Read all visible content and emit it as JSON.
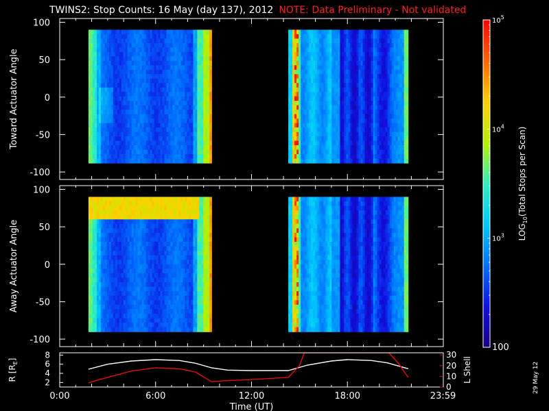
{
  "title": "TWINS2: Stop Counts: 16 May (day 137), 2012",
  "note": "NOTE: Data Preliminary - Not validated",
  "datestamp": "29 May 12",
  "colorbar": {
    "label": "LOG10(Total Stops per Scan)",
    "label_main": "LOG",
    "label_sub": "10",
    "label_rest": "(Total Stops per Scan)",
    "ticks": [
      {
        "base": "10",
        "exp": "5",
        "value": 100000
      },
      {
        "base": "10",
        "exp": "4",
        "value": 10000
      },
      {
        "base": "10",
        "exp": "3",
        "value": 1000
      },
      {
        "base": "100",
        "exp": "",
        "value": 100
      }
    ],
    "colors": [
      "#ff0000",
      "#ff6600",
      "#ffd000",
      "#b8f000",
      "#30f0c0",
      "#00c8ff",
      "#0070ff",
      "#1010e0",
      "#1a0080"
    ]
  },
  "chart_data": [
    {
      "type": "heatmap",
      "ylabel": "Toward Actuator Angle",
      "ylim": [
        -110,
        105
      ],
      "yticks": [
        "100",
        "50",
        "0",
        "-50",
        "-100"
      ],
      "ytick_values": [
        100,
        50,
        0,
        -50,
        -100
      ],
      "data_y_range": [
        -88,
        90
      ],
      "segments": [
        {
          "t_start": 1.8,
          "t_end": 9.5
        },
        {
          "t_start": 14.3,
          "t_end": 21.8
        }
      ],
      "grid": false
    },
    {
      "type": "heatmap",
      "ylabel": "Away Actuator Angle",
      "ylim": [
        -110,
        105
      ],
      "yticks": [
        "100",
        "50",
        "0",
        "-50",
        "-100"
      ],
      "ytick_values": [
        100,
        50,
        0,
        -50,
        -100
      ],
      "data_y_range": [
        -90,
        90
      ],
      "segments": [
        {
          "t_start": 1.8,
          "t_end": 9.5
        },
        {
          "t_start": 14.3,
          "t_end": 21.8
        }
      ],
      "grid": false
    },
    {
      "type": "line",
      "xlabel": "Time (UT)",
      "ylabel_left": "R [RE]",
      "ylabel_left_main": "R [R",
      "ylabel_left_sub": "E",
      "ylabel_left_end": "]",
      "ylabel_right": "L Shell",
      "ylim_left": [
        1,
        8.5
      ],
      "yticks_left": [
        "8",
        "6",
        "4",
        "2"
      ],
      "ytick_values_left": [
        8,
        6,
        4,
        2
      ],
      "ylim_right": [
        0,
        32
      ],
      "yticks_right": [
        "30",
        "20",
        "10",
        "0"
      ],
      "ytick_values_right": [
        30,
        20,
        10,
        0
      ],
      "xticks": [
        "0:00",
        "6:00",
        "12:00",
        "18:00",
        "23:59"
      ],
      "xtick_values": [
        0,
        6,
        12,
        18,
        23.98
      ],
      "series": [
        {
          "color": "#ffffff",
          "axis": "left",
          "x": [
            1.8,
            3,
            4.5,
            6,
            7.5,
            8.5,
            9.5,
            10.5,
            12,
            14.3,
            15.5,
            17,
            18,
            19.5,
            20.5,
            21.8
          ],
          "y": [
            4.9,
            6.0,
            6.7,
            7.0,
            6.8,
            6.2,
            5.2,
            4.7,
            4.6,
            4.6,
            5.8,
            6.7,
            7.0,
            6.8,
            6.3,
            5.0
          ]
        },
        {
          "color": "#e01010",
          "axis": "right",
          "x": [
            1.8,
            3,
            4.5,
            6,
            7.5,
            8.5,
            9.5,
            10.5,
            12,
            14.3,
            15.0,
            15.3,
            20.6,
            21.2,
            21.8
          ],
          "y": [
            4,
            9,
            15,
            18,
            17,
            14,
            5,
            6,
            7,
            9,
            20,
            32,
            32,
            22,
            9
          ]
        }
      ]
    }
  ]
}
